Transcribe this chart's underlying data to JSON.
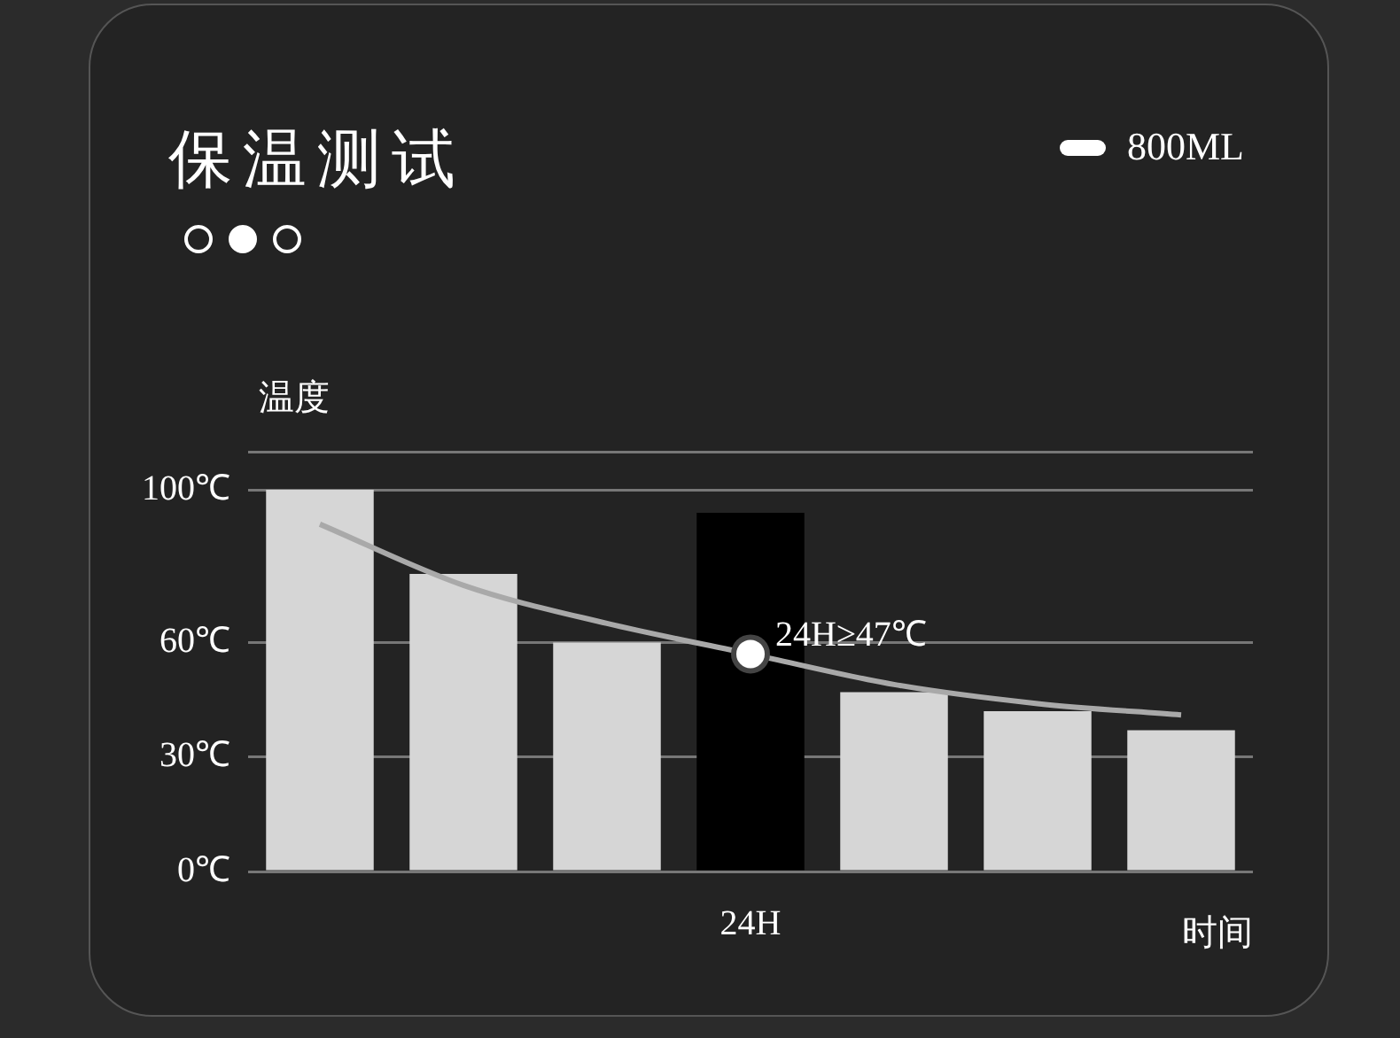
{
  "chart_data": {
    "type": "bar",
    "title": "保温测试",
    "xlabel": "时间",
    "ylabel": "温度",
    "categories": [
      null,
      null,
      null,
      "24H",
      null,
      null,
      null
    ],
    "series": [
      {
        "colors": [
          "#d6d6d6",
          "#d6d6d6",
          "#d6d6d6",
          "#000000",
          "#d6d6d6",
          "#d6d6d6",
          "#d6d6d6"
        ],
        "values": [
          100,
          78,
          60,
          94,
          47,
          42,
          37
        ]
      },
      {
        "type": "line",
        "name": "800ML",
        "color": "#a9a9a9",
        "values": [
          91,
          75,
          65,
          57,
          49,
          44,
          41
        ]
      }
    ],
    "ylim": [
      0,
      110
    ],
    "yticks": [
      {
        "value": 0,
        "label": "0℃"
      },
      {
        "value": 30,
        "label": "30℃"
      },
      {
        "value": 60,
        "label": "60℃"
      },
      {
        "value": 100,
        "label": "100℃"
      },
      {
        "value": 110,
        "label": null
      }
    ],
    "grid": "y",
    "legend": "top right",
    "marker": "none",
    "annotations": [
      {
        "text": "24H≥47℃",
        "x": "24H",
        "y": 57
      }
    ]
  }
}
